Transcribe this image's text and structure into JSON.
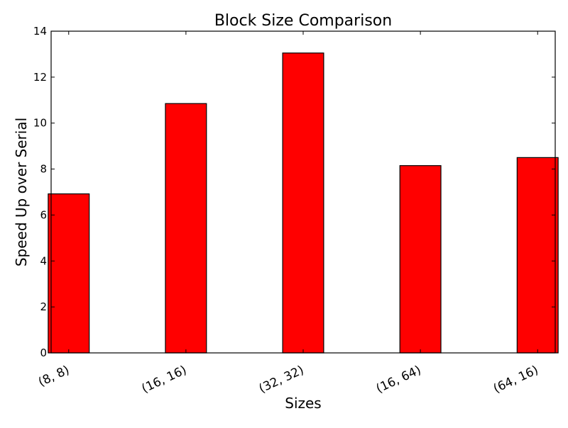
{
  "chart_data": {
    "type": "bar",
    "title": "Block Size Comparison",
    "xlabel": "Sizes",
    "ylabel": "Speed Up over Serial",
    "categories": [
      "(8, 8)",
      "(16, 16)",
      "(32, 32)",
      "(16, 64)",
      "(64, 16)"
    ],
    "values": [
      6.92,
      10.85,
      13.05,
      8.15,
      8.5
    ],
    "ylim": [
      0,
      14
    ],
    "yticks": [
      0,
      2,
      4,
      6,
      8,
      10,
      12,
      14
    ],
    "ytick_labels": [
      "0",
      "2",
      "4",
      "6",
      "8",
      "10",
      "12",
      "14"
    ],
    "bar_color": "#ff0000",
    "edge_color": "#000000",
    "grid": false,
    "legend": "none"
  }
}
